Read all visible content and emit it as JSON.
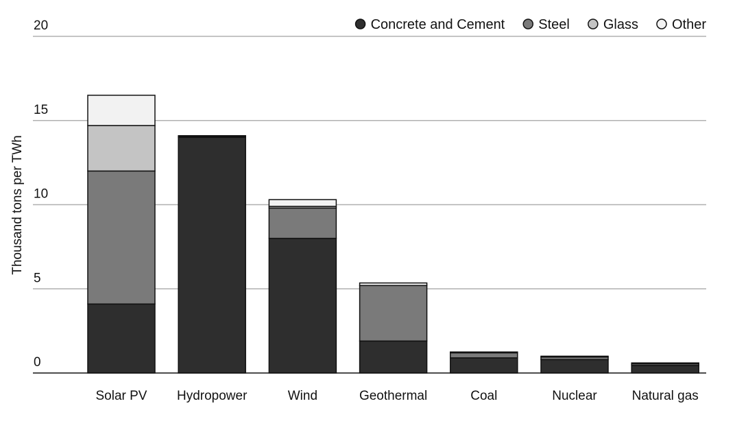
{
  "chart_data": {
    "type": "bar",
    "stacked": true,
    "title": "",
    "xlabel": "",
    "ylabel": "Thousand tons per TWh",
    "ylim": [
      0,
      20
    ],
    "yticks": [
      0,
      5,
      10,
      15,
      20
    ],
    "grid": true,
    "legend_position": "top-right",
    "categories": [
      "Solar PV",
      "Hydropower",
      "Wind",
      "Geothermal",
      "Coal",
      "Nuclear",
      "Natural gas"
    ],
    "series": [
      {
        "name": "Concrete and Cement",
        "color": "#2e2e2e",
        "values": [
          4.1,
          14.0,
          8.0,
          1.9,
          0.9,
          0.8,
          0.45
        ]
      },
      {
        "name": "Steel",
        "color": "#7a7a7a",
        "values": [
          7.9,
          0.05,
          1.8,
          3.3,
          0.3,
          0.15,
          0.1
        ]
      },
      {
        "name": "Glass",
        "color": "#c4c4c4",
        "values": [
          2.7,
          0.0,
          0.1,
          0.0,
          0.0,
          0.0,
          0.0
        ]
      },
      {
        "name": "Other",
        "color": "#f2f2f2",
        "values": [
          1.8,
          0.05,
          0.4,
          0.15,
          0.05,
          0.05,
          0.05
        ]
      }
    ]
  }
}
